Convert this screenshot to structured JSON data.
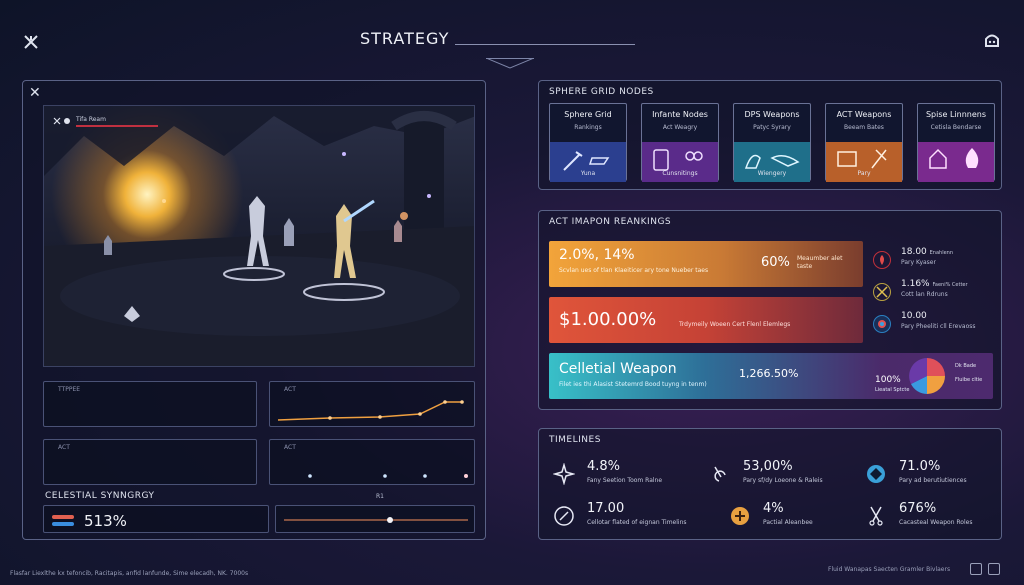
{
  "header": {
    "title": "STRATEGY"
  },
  "game_view": {
    "hud_name": "Tifa Ream"
  },
  "mini_panels": {
    "top_left_label": "TTPPEE",
    "top_right_label": "ACT",
    "bottom_left_label": "ACT",
    "bottom_right_label": "ACT",
    "slider_label": "R1"
  },
  "synergy": {
    "title": "CELESTIAL SYNNGRGY",
    "value": "513%"
  },
  "nodes": {
    "title": "SPHERE GRID NODES",
    "items": [
      {
        "title": "Sphere Grid",
        "subtitle": "Rankings",
        "caption": "Yuna",
        "color": "#2b3f8f"
      },
      {
        "title": "Infante Nodes",
        "subtitle": "Act Weagry",
        "caption": "Cunsnitings",
        "color": "#5a2b8a"
      },
      {
        "title": "DPS Weapons",
        "subtitle": "Patyc Syrary",
        "caption": "Wiengery",
        "color": "#1f6f8a"
      },
      {
        "title": "ACT Weapons",
        "subtitle": "Beeam Bates",
        "caption": "Pary",
        "color": "#b8602a"
      },
      {
        "title": "Spise Linnnens",
        "subtitle": "Cetisla Bendarse",
        "caption": "",
        "color": "#7a2a8e"
      }
    ]
  },
  "rankings": {
    "title": "ACT IMAPON REANKINGS",
    "bar1": {
      "value": "2.0%, 14%",
      "desc": "Scvlan ues of tlan Klaeiticer ary tone Nueber taes",
      "percent": "60%",
      "right_note": "Meaumber alet",
      "right_note2": "taste"
    },
    "bar2": {
      "value": "$1.00.00%",
      "desc": "Trdymeily Woeen Cert Flenl Elemlegs"
    },
    "bar3": {
      "value": "Celletial Weapon",
      "desc": "Filet ies thi Alasist Stetemrd Bood tuyng in tenm)",
      "number": "1,266.50%",
      "pie_value": "100%",
      "pie_caption": "Lieatal Sptcte",
      "legend1": "Dk Bade",
      "legend2": "Fluibe cltie"
    },
    "side": [
      {
        "value": "18.00",
        "label": "Enahlenn",
        "sub": "Pary Kyaser",
        "color": "#c0303a"
      },
      {
        "value": "1.16%",
        "label": "Faeni% Cetter",
        "sub": "Cott lan Rdruns",
        "color": "#b8a040"
      },
      {
        "value": "10.00",
        "label": "",
        "sub": "Pary Pheeliti cll Erevaoss",
        "color": "#2a7fc0"
      }
    ]
  },
  "timelines": {
    "title": "TIMELINES",
    "items": [
      {
        "value": "4.8%",
        "sub": "Fany Seetion Toom Ralne"
      },
      {
        "value": "53,00%",
        "sub": "Pary sf/dy Loeone & Raleis"
      },
      {
        "value": "71.0%",
        "sub": "Pary ad berutiutiences"
      },
      {
        "value": "17.00",
        "sub": "Cellotar flated of eignan Timelins"
      },
      {
        "value": "4%",
        "sub": "Pactial Aleanbee"
      },
      {
        "value": "676%",
        "sub": "Cacasteal Weapon Roles"
      }
    ]
  },
  "footer": {
    "left": "Flasfar Liexlthe   kx tefoncib, Racitapis, anfid lanfunde, Sime elecadh, NK. 7000s",
    "right": "Fluid Wanapas Saecten Gramler Bivlaers"
  }
}
